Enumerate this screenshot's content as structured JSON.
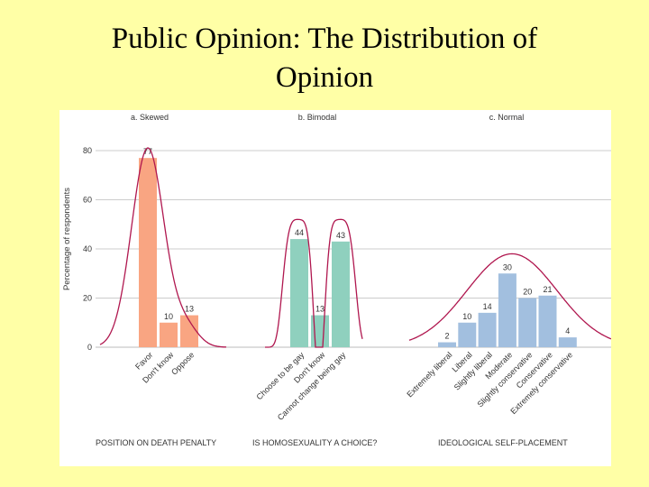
{
  "slide": {
    "title_line1": "Public Opinion:  The Distribution of",
    "title_line2": "Opinion"
  },
  "chart_data": {
    "type": "bar",
    "ylabel": "Percentage of respondents",
    "ylim": [
      0,
      80
    ],
    "yticks": [
      "0",
      "20",
      "40",
      "60",
      "80"
    ],
    "grid": true,
    "panels": [
      {
        "title": "a. Skewed",
        "xlabel": "POSITION ON DEATH PENALTY",
        "color": "#f9a582",
        "categories": [
          "Favor",
          "Don't know",
          "Oppose"
        ],
        "values": [
          77,
          10,
          13
        ]
      },
      {
        "title": "b. Bimodal",
        "xlabel": "IS HOMOSEXUALITY A CHOICE?",
        "color": "#8fd0be",
        "categories": [
          "Choose to be gay",
          "Don't know",
          "Cannot change being gay"
        ],
        "values": [
          44,
          13,
          43
        ]
      },
      {
        "title": "c. Normal",
        "xlabel": "IDEOLOGICAL SELF-PLACEMENT",
        "color": "#a2bfdf",
        "categories": [
          "Extremely liberal",
          "Liberal",
          "Slightly liberal",
          "Moderate",
          "Slightly conservative",
          "Conservative",
          "Extremely conservative"
        ],
        "values": [
          2,
          10,
          14,
          30,
          20,
          21,
          4
        ]
      }
    ],
    "curve_color": "#b0174f",
    "grid_color": "#cccccc"
  }
}
